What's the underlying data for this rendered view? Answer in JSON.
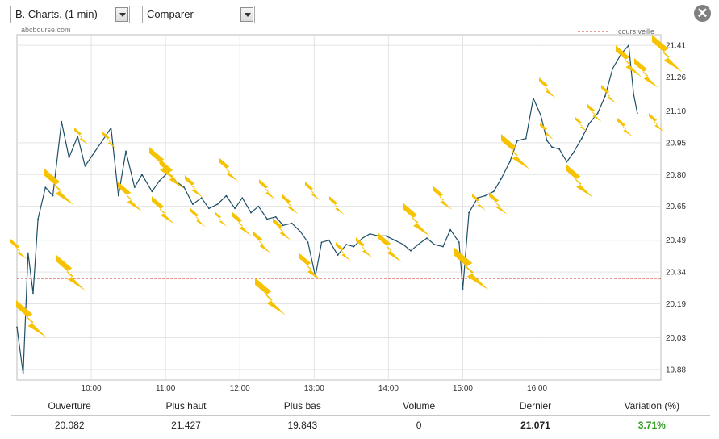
{
  "controls": {
    "chart_select": "B. Charts. (1 min)",
    "compare_select": "Comparer",
    "close_label": "✕",
    "brand": "abcbourse.com"
  },
  "colors": {
    "price_line": "#1f4f66",
    "reference_line": "#d32f2f",
    "grid": "#e3e3e3",
    "bolt": "#f7c300",
    "variation_positive": "#2e9a21"
  },
  "chart_data": {
    "type": "line",
    "legend": {
      "label": "cours veille",
      "placement": "top-right"
    },
    "reference_value": 20.31,
    "ylim": [
      19.83,
      21.46
    ],
    "xlim_minutes": [
      540,
      1060
    ],
    "y_ticks": [
      "21.41",
      "21.26",
      "21.10",
      "20.95",
      "20.80",
      "20.65",
      "20.49",
      "20.34",
      "20.19",
      "20.03",
      "19.88"
    ],
    "x_ticks": [
      {
        "label": "10:00",
        "minute": 600
      },
      {
        "label": "11:00",
        "minute": 660
      },
      {
        "label": "12:00",
        "minute": 720
      },
      {
        "label": "13:00",
        "minute": 780
      },
      {
        "label": "14:00",
        "minute": 840
      },
      {
        "label": "15:00",
        "minute": 900
      },
      {
        "label": "16:00",
        "minute": 960
      }
    ],
    "grid": true,
    "series": [
      {
        "points": [
          [
            540,
            20.08
          ],
          [
            545,
            19.86
          ],
          [
            549,
            20.43
          ],
          [
            553,
            20.24
          ],
          [
            557,
            20.59
          ],
          [
            563,
            20.74
          ],
          [
            569,
            20.7
          ],
          [
            576,
            21.05
          ],
          [
            582,
            20.88
          ],
          [
            589,
            20.98
          ],
          [
            595,
            20.84
          ],
          [
            602,
            20.9
          ],
          [
            609,
            20.96
          ],
          [
            616,
            21.02
          ],
          [
            622,
            20.7
          ],
          [
            628,
            20.91
          ],
          [
            635,
            20.74
          ],
          [
            641,
            20.8
          ],
          [
            649,
            20.72
          ],
          [
            655,
            20.77
          ],
          [
            662,
            20.81
          ],
          [
            668,
            20.77
          ],
          [
            675,
            20.74
          ],
          [
            682,
            20.66
          ],
          [
            689,
            20.69
          ],
          [
            695,
            20.64
          ],
          [
            702,
            20.66
          ],
          [
            709,
            20.7
          ],
          [
            716,
            20.64
          ],
          [
            722,
            20.69
          ],
          [
            729,
            20.62
          ],
          [
            735,
            20.65
          ],
          [
            742,
            20.59
          ],
          [
            749,
            20.6
          ],
          [
            755,
            20.56
          ],
          [
            762,
            20.57
          ],
          [
            769,
            20.53
          ],
          [
            775,
            20.48
          ],
          [
            781,
            20.32
          ],
          [
            786,
            20.48
          ],
          [
            792,
            20.49
          ],
          [
            799,
            20.42
          ],
          [
            806,
            20.47
          ],
          [
            812,
            20.46
          ],
          [
            819,
            20.5
          ],
          [
            825,
            20.52
          ],
          [
            832,
            20.51
          ],
          [
            838,
            20.51
          ],
          [
            845,
            20.49
          ],
          [
            852,
            20.47
          ],
          [
            858,
            20.44
          ],
          [
            864,
            20.47
          ],
          [
            871,
            20.5
          ],
          [
            877,
            20.47
          ],
          [
            884,
            20.46
          ],
          [
            890,
            20.54
          ],
          [
            897,
            20.48
          ],
          [
            900,
            20.26
          ],
          [
            905,
            20.62
          ],
          [
            912,
            20.69
          ],
          [
            918,
            20.7
          ],
          [
            925,
            20.72
          ],
          [
            931,
            20.78
          ],
          [
            938,
            20.86
          ],
          [
            944,
            20.96
          ],
          [
            951,
            20.97
          ],
          [
            957,
            21.16
          ],
          [
            963,
            21.08
          ],
          [
            968,
            20.96
          ],
          [
            972,
            20.93
          ],
          [
            978,
            20.92
          ],
          [
            984,
            20.86
          ],
          [
            989,
            20.9
          ],
          [
            996,
            20.97
          ],
          [
            1002,
            21.04
          ],
          [
            1009,
            21.09
          ],
          [
            1015,
            21.17
          ],
          [
            1021,
            21.3
          ],
          [
            1028,
            21.37
          ],
          [
            1034,
            21.41
          ],
          [
            1038,
            21.18
          ],
          [
            1041,
            21.09
          ]
        ]
      }
    ]
  },
  "stats": {
    "headers": [
      "Ouverture",
      "Plus haut",
      "Plus bas",
      "Volume",
      "Dernier",
      "Variation (%)"
    ],
    "values": [
      "20.082",
      "21.427",
      "19.843",
      "0",
      "21.071",
      "3.71%"
    ]
  }
}
